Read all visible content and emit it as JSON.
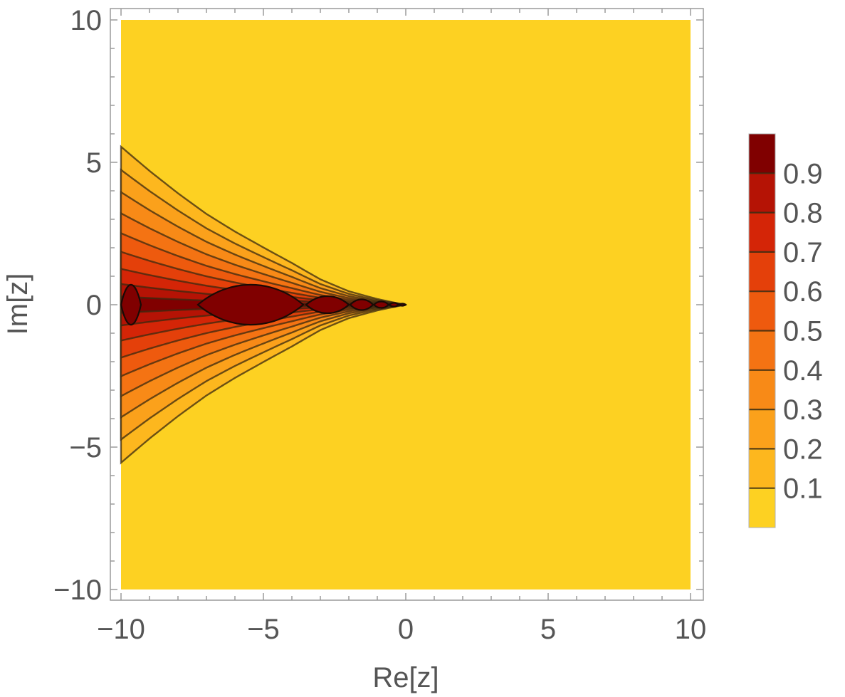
{
  "chart_data": {
    "type": "contour",
    "xlabel": "Re[z]",
    "ylabel": "Im[z]",
    "xlim": [
      -10,
      10
    ],
    "ylim": [
      -10,
      10
    ],
    "x_ticks": [
      -10,
      -5,
      0,
      5,
      10
    ],
    "y_ticks": [
      -10,
      -5,
      0,
      5,
      10
    ],
    "x_tick_labels": [
      "−10",
      "−5",
      "0",
      "5",
      "10"
    ],
    "y_tick_labels": [
      "−10",
      "−5",
      "0",
      "5",
      "10"
    ],
    "grid": false,
    "legend": {
      "placement": "right",
      "range": [
        0,
        1
      ],
      "ticks": [
        0.1,
        0.2,
        0.3,
        0.4,
        0.5,
        0.6,
        0.7,
        0.8,
        0.9
      ],
      "tick_labels": [
        "0.1",
        "0.2",
        "0.3",
        "0.4",
        "0.5",
        "0.6",
        "0.7",
        "0.8",
        "0.9"
      ]
    },
    "contour_levels": [
      0.1,
      0.2,
      0.3,
      0.4,
      0.5,
      0.6,
      0.7,
      0.8,
      0.9
    ],
    "band_colors": [
      "#FDD122",
      "#FDB71E",
      "#FBA11B",
      "#F88A17",
      "#F47313",
      "#EE5A0E",
      "#E4400A",
      "#D42507",
      "#B51305",
      "#800000"
    ],
    "contour_line_color": "#3a2a10",
    "region_boundaries": [
      {
        "x": -10.0,
        "upper": 5.55,
        "lower": -5.55
      },
      {
        "x": -9.0,
        "upper": 4.75,
        "lower": -4.75
      },
      {
        "x": -8.0,
        "upper": 4.0,
        "lower": -4.0
      },
      {
        "x": -7.0,
        "upper": 3.3,
        "lower": -3.3
      },
      {
        "x": -6.0,
        "upper": 2.7,
        "lower": -2.7
      },
      {
        "x": -5.0,
        "upper": 2.15,
        "lower": -2.15
      },
      {
        "x": -4.0,
        "upper": 1.6,
        "lower": -1.6
      },
      {
        "x": -3.0,
        "upper": 1.0,
        "lower": -1.0
      },
      {
        "x": -2.0,
        "upper": 0.55,
        "lower": -0.55
      },
      {
        "x": -1.0,
        "upper": 0.25,
        "lower": -0.25
      },
      {
        "x": 0.0,
        "upper": 0.0,
        "lower": 0.0
      }
    ],
    "lobes": [
      {
        "from": -10.0,
        "to": -9.3,
        "half_height": 0.75
      },
      {
        "from": -7.3,
        "to": -3.6,
        "half_height": 0.75
      },
      {
        "from": -3.5,
        "to": -2.0,
        "half_height": 0.32
      },
      {
        "from": -1.95,
        "to": -1.15,
        "half_height": 0.2
      },
      {
        "from": -1.12,
        "to": -0.6,
        "half_height": 0.12
      },
      {
        "from": -0.58,
        "to": -0.25,
        "half_height": 0.07
      },
      {
        "from": -0.24,
        "to": 0.0,
        "half_height": 0.04
      }
    ]
  }
}
